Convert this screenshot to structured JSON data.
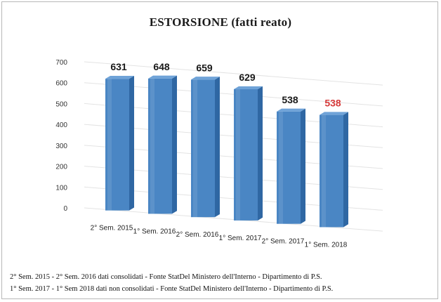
{
  "chart_data": {
    "type": "bar",
    "title": "ESTORSIONE  (fatti reato)",
    "categories": [
      "2° Sem. 2015",
      "1° Sem. 2016",
      "2° Sem. 2016",
      "1° Sem. 2017",
      "2° Sem. 2017",
      "1° Sem. 2018"
    ],
    "values": [
      631,
      648,
      659,
      629,
      538,
      538
    ],
    "data_labels": [
      "631",
      "648",
      "659",
      "629",
      "538",
      "538"
    ],
    "yticks": [
      "0",
      "100",
      "200",
      "300",
      "400",
      "500",
      "600",
      "700"
    ],
    "ylim": [
      0,
      700
    ],
    "xlabel": "",
    "ylabel": "",
    "grid": true,
    "legend": "none",
    "bar_color": "#4a86c4",
    "highlight_label_color": "#d63a3a",
    "highlight_index": 5
  },
  "footnotes": [
    "2° Sem. 2015 - 2° Sem. 2016 dati consolidati - Fonte StatDel Ministero dell'Interno - Dipartimento di P.S.",
    "1° Sem. 2017 - 1° Sem 2018 dati non consolidati - Fonte StatDel Ministero dell'Interno - Dipartimento di P.S."
  ]
}
